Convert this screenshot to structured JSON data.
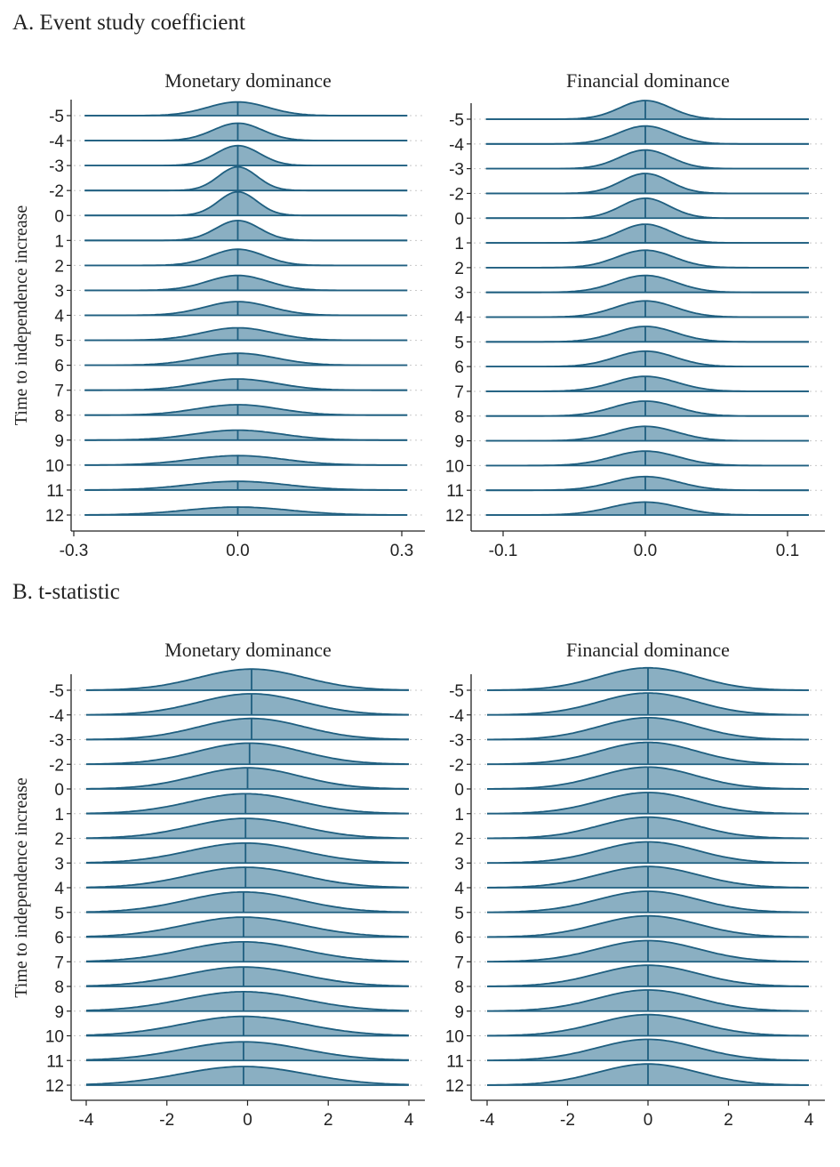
{
  "panels": [
    {
      "title": "A. Event study coefficient"
    },
    {
      "title": "B. t-statistic"
    }
  ],
  "chart_data": [
    {
      "type": "area",
      "subtype": "ridgeline-density",
      "panel": "A. Event study coefficient",
      "title": "Monetary dominance",
      "ylabel": "Time to independence increase",
      "xlabel": "",
      "categories": [
        "-5",
        "-4",
        "-3",
        "-2",
        "0",
        "1",
        "2",
        "3",
        "4",
        "5",
        "6",
        "7",
        "8",
        "9",
        "10",
        "11",
        "12"
      ],
      "xticks": [
        "-0.3",
        "0.0",
        "0.3"
      ],
      "xtick_values": [
        -0.3,
        0.0,
        0.3
      ],
      "xlim": [
        -0.3,
        0.3
      ],
      "support": [
        -0.28,
        0.31
      ],
      "median_line": [
        0.0,
        0.0,
        0.0,
        0.0,
        0.0,
        0.0,
        0.0,
        0.0,
        0.0,
        0.0,
        0.0,
        0.0,
        0.0,
        0.0,
        0.0,
        0.0,
        0.0
      ],
      "spread_sd": [
        0.055,
        0.045,
        0.04,
        0.035,
        0.035,
        0.04,
        0.048,
        0.055,
        0.06,
        0.065,
        0.07,
        0.072,
        0.075,
        0.08,
        0.085,
        0.09,
        0.095
      ],
      "peak_height": [
        0.55,
        0.7,
        0.8,
        0.95,
        0.95,
        0.8,
        0.65,
        0.6,
        0.55,
        0.5,
        0.48,
        0.45,
        0.42,
        0.4,
        0.38,
        0.35,
        0.32
      ],
      "grid": true
    },
    {
      "type": "area",
      "subtype": "ridgeline-density",
      "panel": "A. Event study coefficient",
      "title": "Financial dominance",
      "ylabel": "",
      "categories": [
        "-5",
        "-4",
        "-3",
        "-2",
        "0",
        "1",
        "2",
        "3",
        "4",
        "5",
        "6",
        "7",
        "8",
        "9",
        "10",
        "11",
        "12"
      ],
      "xticks": [
        "-0.1",
        "0.0",
        "0.1"
      ],
      "xtick_values": [
        -0.1,
        0.0,
        0.1
      ],
      "xlim": [
        -0.12,
        0.12
      ],
      "support": [
        -0.112,
        0.115
      ],
      "median_line": [
        0.0,
        0.0,
        0.0,
        0.0,
        0.0,
        0.0,
        0.0,
        0.0,
        0.0,
        0.0,
        0.0,
        0.0,
        0.0,
        0.0,
        0.0,
        0.0,
        0.0
      ],
      "spread_sd": [
        0.018,
        0.019,
        0.018,
        0.017,
        0.017,
        0.018,
        0.02,
        0.021,
        0.021,
        0.021,
        0.021,
        0.022,
        0.022,
        0.022,
        0.023,
        0.023,
        0.024
      ],
      "peak_height": [
        0.75,
        0.72,
        0.75,
        0.8,
        0.8,
        0.75,
        0.7,
        0.68,
        0.65,
        0.62,
        0.62,
        0.6,
        0.6,
        0.58,
        0.58,
        0.55,
        0.52
      ],
      "grid": true
    },
    {
      "type": "area",
      "subtype": "ridgeline-density",
      "panel": "B. t-statistic",
      "title": "Monetary dominance",
      "ylabel": "Time to independence increase",
      "categories": [
        "-5",
        "-4",
        "-3",
        "-2",
        "0",
        "1",
        "2",
        "3",
        "4",
        "5",
        "6",
        "7",
        "8",
        "9",
        "10",
        "11",
        "12"
      ],
      "xticks": [
        "-4",
        "-2",
        "0",
        "2",
        "4"
      ],
      "xtick_values": [
        -4,
        -2,
        0,
        2,
        4
      ],
      "xlim": [
        -4.1,
        4.1
      ],
      "support": [
        -4,
        4
      ],
      "median_line": [
        0.1,
        0.1,
        0.1,
        0.05,
        0.0,
        -0.05,
        -0.05,
        -0.05,
        -0.05,
        -0.1,
        -0.1,
        -0.1,
        -0.1,
        -0.1,
        -0.1,
        -0.1,
        -0.1
      ],
      "spread_sd": [
        1.3,
        1.3,
        1.3,
        1.3,
        1.3,
        1.35,
        1.35,
        1.4,
        1.4,
        1.4,
        1.45,
        1.45,
        1.45,
        1.5,
        1.5,
        1.5,
        1.55
      ],
      "peak_height": [
        0.85,
        0.85,
        0.85,
        0.85,
        0.85,
        0.8,
        0.8,
        0.8,
        0.82,
        0.82,
        0.8,
        0.8,
        0.78,
        0.78,
        0.78,
        0.75,
        0.75
      ],
      "grid": true
    },
    {
      "type": "area",
      "subtype": "ridgeline-density",
      "panel": "B. t-statistic",
      "title": "Financial dominance",
      "ylabel": "",
      "categories": [
        "-5",
        "-4",
        "-3",
        "-2",
        "0",
        "1",
        "2",
        "3",
        "4",
        "5",
        "6",
        "7",
        "8",
        "9",
        "10",
        "11",
        "12"
      ],
      "xticks": [
        "-4",
        "-2",
        "0",
        "2",
        "4"
      ],
      "xtick_values": [
        -4,
        -2,
        0,
        2,
        4
      ],
      "xlim": [
        -4.1,
        4.1
      ],
      "support": [
        -4,
        4
      ],
      "median_line": [
        0.0,
        0.0,
        0.0,
        0.0,
        0.0,
        0.0,
        0.0,
        0.0,
        0.0,
        0.0,
        0.0,
        0.0,
        0.0,
        0.0,
        0.0,
        0.0,
        0.0
      ],
      "spread_sd": [
        1.2,
        1.2,
        1.2,
        1.2,
        1.2,
        1.2,
        1.2,
        1.2,
        1.25,
        1.25,
        1.25,
        1.25,
        1.25,
        1.25,
        1.25,
        1.25,
        1.25
      ],
      "peak_height": [
        0.9,
        0.88,
        0.88,
        0.88,
        0.88,
        0.85,
        0.85,
        0.85,
        0.85,
        0.85,
        0.85,
        0.85,
        0.85,
        0.85,
        0.85,
        0.85,
        0.85
      ],
      "grid": true
    }
  ],
  "colors": {
    "line": "#1f5f80",
    "fill": "#8aafc2",
    "grid": "#c8c8c8",
    "axis": "#222222"
  }
}
